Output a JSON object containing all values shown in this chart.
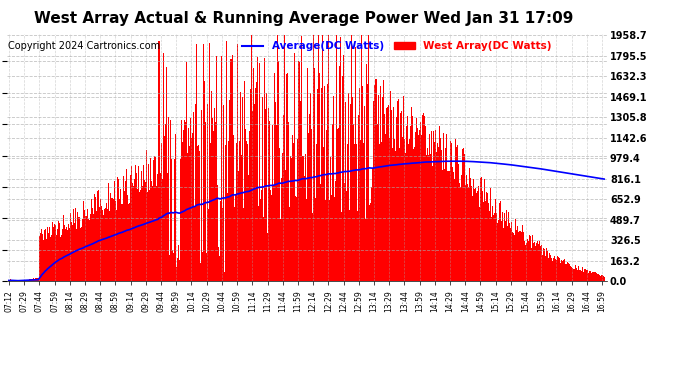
{
  "title": "West Array Actual & Running Average Power Wed Jan 31 17:09",
  "copyright": "Copyright 2024 Cartronics.com",
  "ylabel_right_values": [
    1958.7,
    1795.5,
    1632.3,
    1469.1,
    1305.8,
    1142.6,
    979.4,
    816.1,
    652.9,
    489.7,
    326.5,
    163.2,
    0.0
  ],
  "ymax": 1958.7,
  "ymin": 0.0,
  "legend_average_label": "Average(DC Watts)",
  "legend_west_label": "West Array(DC Watts)",
  "legend_average_color": "#0000ff",
  "legend_west_color": "#ff0000",
  "title_fontsize": 11,
  "copyright_fontsize": 7,
  "background_color": "#ffffff",
  "grid_color": "#aaaaaa",
  "bar_color": "#ff0000",
  "line_color": "#0000ff",
  "tick_labels": [
    "07:12",
    "07:29",
    "07:44",
    "07:59",
    "08:14",
    "08:29",
    "08:44",
    "08:59",
    "09:14",
    "09:29",
    "09:44",
    "09:59",
    "10:14",
    "10:29",
    "10:44",
    "10:59",
    "11:14",
    "11:29",
    "11:44",
    "11:59",
    "12:14",
    "12:29",
    "12:44",
    "12:59",
    "13:14",
    "13:29",
    "13:44",
    "13:59",
    "14:14",
    "14:29",
    "14:44",
    "14:59",
    "15:14",
    "15:29",
    "15:44",
    "15:59",
    "16:14",
    "16:29",
    "16:44",
    "16:59"
  ]
}
